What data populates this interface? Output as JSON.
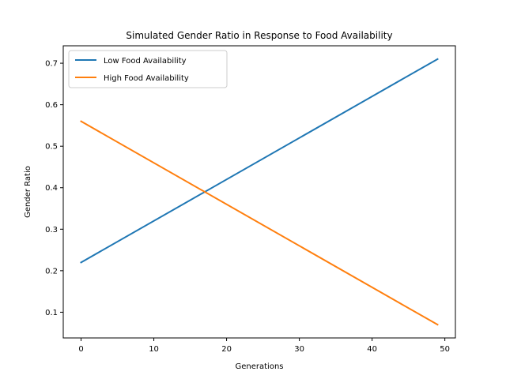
{
  "chart_data": {
    "type": "line",
    "title": "Simulated Gender Ratio in Response to Food Availability",
    "xlabel": "Generations",
    "ylabel": "Gender Ratio",
    "xlim": [
      -2.45,
      51.45
    ],
    "ylim": [
      0.038,
      0.742
    ],
    "xticks": [
      0,
      10,
      20,
      30,
      40,
      50
    ],
    "yticks": [
      0.1,
      0.2,
      0.3,
      0.4,
      0.5,
      0.6,
      0.7
    ],
    "xtick_labels": [
      "0",
      "10",
      "20",
      "30",
      "40",
      "50"
    ],
    "ytick_labels": [
      "0.1",
      "0.2",
      "0.3",
      "0.4",
      "0.5",
      "0.6",
      "0.7"
    ],
    "grid": false,
    "legend_position": "upper-left",
    "series": [
      {
        "name": "Low Food Availability",
        "color": "#1f77b4",
        "x": [
          0,
          49
        ],
        "y": [
          0.22,
          0.71
        ]
      },
      {
        "name": "High Food Availability",
        "color": "#ff7f0e",
        "x": [
          0,
          49
        ],
        "y": [
          0.56,
          0.07
        ]
      }
    ]
  }
}
